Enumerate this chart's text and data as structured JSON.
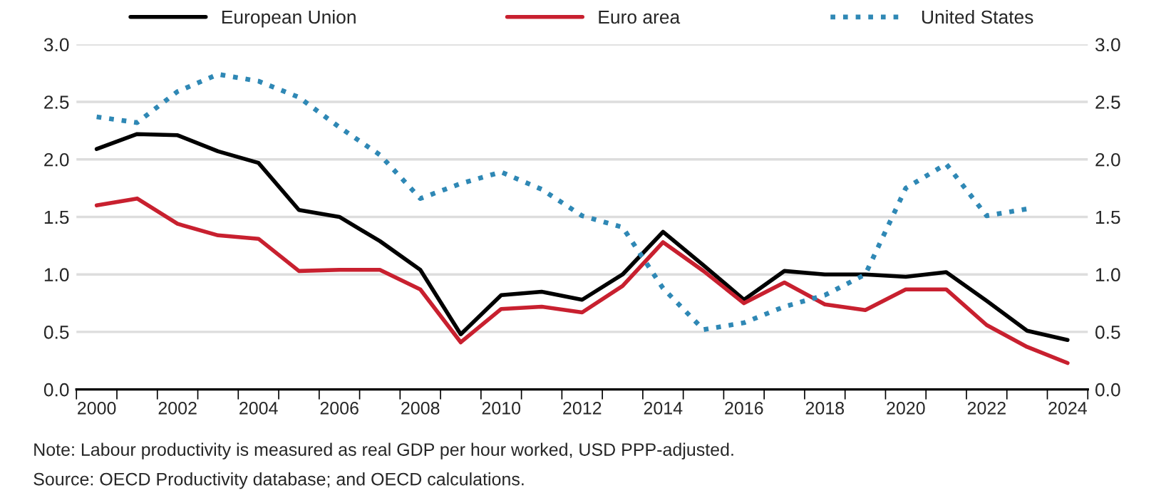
{
  "chart_data": {
    "type": "line",
    "x": [
      2000,
      2001,
      2002,
      2003,
      2004,
      2005,
      2006,
      2007,
      2008,
      2009,
      2010,
      2011,
      2012,
      2013,
      2014,
      2015,
      2016,
      2017,
      2018,
      2019,
      2020,
      2021,
      2022,
      2023,
      2024
    ],
    "series": [
      {
        "name": "European Union",
        "color": "#000000",
        "line_style": "solid",
        "values": [
          2.09,
          2.22,
          2.21,
          2.07,
          1.97,
          1.56,
          1.5,
          1.29,
          1.04,
          0.48,
          0.82,
          0.85,
          0.78,
          1.0,
          1.37,
          1.08,
          0.78,
          1.03,
          1.0,
          1.0,
          0.98,
          1.02,
          0.77,
          0.51,
          0.43
        ]
      },
      {
        "name": "Euro area",
        "color": "#c8202f",
        "line_style": "solid",
        "values": [
          1.6,
          1.66,
          1.44,
          1.34,
          1.31,
          1.03,
          1.04,
          1.04,
          0.87,
          0.41,
          0.7,
          0.72,
          0.67,
          0.9,
          1.28,
          1.03,
          0.75,
          0.93,
          0.74,
          0.69,
          0.87,
          0.87,
          0.56,
          0.37,
          0.23
        ]
      },
      {
        "name": "United States",
        "color": "#2f88b5",
        "line_style": "dotted",
        "values": [
          2.37,
          2.32,
          2.59,
          2.74,
          2.68,
          2.54,
          2.28,
          2.04,
          1.66,
          1.79,
          1.89,
          1.74,
          1.51,
          1.41,
          0.88,
          0.52,
          0.58,
          0.72,
          0.82,
          1.0,
          1.75,
          1.96,
          1.51,
          1.57,
          null
        ]
      }
    ],
    "xlim": [
      1999.5,
      2024.5
    ],
    "xticks": [
      {
        "value": 1999.5,
        "label": null
      },
      2000,
      {
        "value": 2000.5,
        "label": null
      },
      {
        "value": 2001.5,
        "label": null
      },
      2002,
      {
        "value": 2002.5,
        "label": null
      },
      {
        "value": 2003.5,
        "label": null
      },
      2004,
      {
        "value": 2004.5,
        "label": null
      },
      {
        "value": 2005.5,
        "label": null
      },
      2006,
      {
        "value": 2006.5,
        "label": null
      },
      {
        "value": 2007.5,
        "label": null
      },
      2008,
      {
        "value": 2008.5,
        "label": null
      },
      {
        "value": 2009.5,
        "label": null
      },
      2010,
      {
        "value": 2010.5,
        "label": null
      },
      {
        "value": 2011.5,
        "label": null
      },
      2012,
      {
        "value": 2012.5,
        "label": null
      },
      {
        "value": 2013.5,
        "label": null
      },
      2014,
      {
        "value": 2014.5,
        "label": null
      },
      {
        "value": 2015.5,
        "label": null
      },
      2016,
      {
        "value": 2016.5,
        "label": null
      },
      {
        "value": 2017.5,
        "label": null
      },
      2018,
      {
        "value": 2018.5,
        "label": null
      },
      {
        "value": 2019.5,
        "label": null
      },
      2020,
      {
        "value": 2020.5,
        "label": null
      },
      {
        "value": 2021.5,
        "label": null
      },
      2022,
      {
        "value": 2022.5,
        "label": null
      },
      {
        "value": 2023.5,
        "label": null
      },
      2024,
      {
        "value": 2024.5,
        "label": null
      }
    ],
    "ylim": [
      0,
      3
    ],
    "yticks": [
      {
        "value": 0,
        "label": "0.0"
      },
      {
        "value": 0.5,
        "label": "0.5"
      },
      {
        "value": 1,
        "label": "1.0"
      },
      {
        "value": 1.5,
        "label": "1.5"
      },
      {
        "value": 2,
        "label": "2.0"
      },
      {
        "value": 2.5,
        "label": "2.5"
      },
      {
        "value": 3,
        "label": "3.0"
      }
    ],
    "y2lim": [
      0,
      3
    ],
    "y2ticks": [
      {
        "value": 0,
        "label": "0.0"
      },
      {
        "value": 0.5,
        "label": "0.5"
      },
      {
        "value": 1,
        "label": "1.0"
      },
      {
        "value": 1.5,
        "label": "1.5"
      },
      {
        "value": 2,
        "label": "2.0"
      },
      {
        "value": 2.5,
        "label": "2.5"
      },
      {
        "value": 3,
        "label": "3.0"
      }
    ],
    "grid": "y",
    "legend": "top",
    "marker": "none",
    "annotations": [
      "Note: Labour productivity is measured as real GDP per hour worked, USD PPP-adjusted.",
      "Source: OECD Productivity database; and OECD calculations."
    ]
  }
}
